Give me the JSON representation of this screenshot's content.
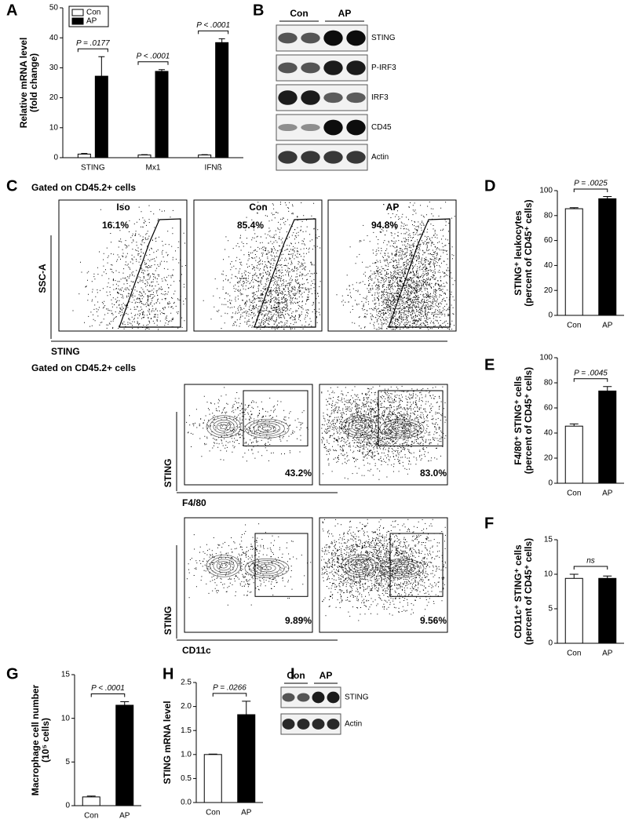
{
  "chart_data": [
    {
      "panel": "A",
      "type": "bar",
      "categories": [
        "STING",
        "Mx1",
        "IFNß"
      ],
      "series": [
        {
          "name": "Con",
          "color": "#ffffff",
          "values": [
            1.2,
            0.9,
            0.9
          ],
          "errors": [
            0.2,
            0.1,
            0.1
          ]
        },
        {
          "name": "AP",
          "color": "#000000",
          "values": [
            27.2,
            28.8,
            38.4
          ],
          "errors": [
            6.5,
            0.6,
            1.3
          ]
        }
      ],
      "ylabel": [
        "Relative mRNA level",
        "(fold change)"
      ],
      "ylim": [
        0,
        50
      ],
      "yticks": [
        0,
        10,
        20,
        30,
        40,
        50
      ],
      "annotations": [
        "P = .0177",
        "P < .0001",
        "P < .0001"
      ],
      "legend": "upper left"
    },
    {
      "panel": "D",
      "type": "bar",
      "categories": [
        "Con",
        "AP"
      ],
      "values": [
        85.5,
        93.5
      ],
      "errors": [
        0.8,
        1.8
      ],
      "colors": [
        "#ffffff",
        "#000000"
      ],
      "ylabel": [
        "STING⁺ leukocytes",
        "(percent of CD45⁺ cells)"
      ],
      "ylim": [
        0,
        100
      ],
      "yticks": [
        0,
        20,
        40,
        60,
        80,
        100
      ],
      "annotations": [
        "P = .0025"
      ]
    },
    {
      "panel": "E",
      "type": "bar",
      "categories": [
        "Con",
        "AP"
      ],
      "values": [
        45.5,
        73.5
      ],
      "errors": [
        1.8,
        3.5
      ],
      "colors": [
        "#ffffff",
        "#000000"
      ],
      "ylabel": [
        "F4/80⁺ STING⁺ cells",
        "(percent of CD45⁺ cells)"
      ],
      "ylim": [
        0,
        100
      ],
      "yticks": [
        0,
        20,
        40,
        60,
        80,
        100
      ],
      "annotations": [
        "P = .0045"
      ]
    },
    {
      "panel": "F",
      "type": "bar",
      "categories": [
        "Con",
        "AP"
      ],
      "values": [
        9.4,
        9.4
      ],
      "errors": [
        0.6,
        0.35
      ],
      "colors": [
        "#ffffff",
        "#000000"
      ],
      "ylabel": [
        "CD11c⁺ STING⁺ cells",
        "(percent of CD45⁺ cells)"
      ],
      "ylim": [
        0,
        15
      ],
      "yticks": [
        0,
        5,
        10,
        15
      ],
      "annotations": [
        "ns"
      ]
    },
    {
      "panel": "G",
      "type": "bar",
      "categories": [
        "Con",
        "AP"
      ],
      "values": [
        1.0,
        11.5
      ],
      "errors": [
        0.1,
        0.4
      ],
      "colors": [
        "#ffffff",
        "#000000"
      ],
      "ylabel": [
        "Macrophage cell number",
        "(10⁵ cells)"
      ],
      "ylim": [
        0,
        15
      ],
      "yticks": [
        0,
        5,
        10,
        15
      ],
      "annotations": [
        "P < .0001"
      ]
    },
    {
      "panel": "H",
      "type": "bar",
      "categories": [
        "Con",
        "AP"
      ],
      "values": [
        1.0,
        1.83
      ],
      "errors": [
        0.01,
        0.28
      ],
      "colors": [
        "#ffffff",
        "#000000"
      ],
      "ylabel": [
        "STING mRNA level"
      ],
      "ylim": [
        0,
        2.5
      ],
      "yticks": [
        {
          "value": 0,
          "label": "0.0"
        },
        0.5,
        {
          "value": 1,
          "label": "1.0"
        },
        1.5,
        {
          "value": 2,
          "label": "2.0"
        },
        2.5
      ],
      "annotations": [
        "P = .0266"
      ]
    }
  ],
  "blot_b": {
    "panel": "B",
    "groups": [
      "Con",
      "AP"
    ],
    "bands": [
      "STING",
      "P-IRF3",
      "IRF3",
      "CD45",
      "Actin"
    ]
  },
  "flow_c": {
    "panel": "C",
    "gate_titles": [
      "Gated on CD45.2+ cells",
      "Gated on CD45.2+ cells"
    ],
    "samples": [
      "Iso",
      "Con",
      "AP"
    ],
    "top_percents": [
      "16.1%",
      "85.4%",
      "94.8%"
    ],
    "top_y_label": "SSC-A",
    "top_x_label": "STING",
    "f480_percents": [
      "43.2%",
      "83.0%"
    ],
    "f480_y_label": "STING",
    "f480_x_label": "F4/80",
    "cd11c_percents": [
      "9.89%",
      "9.56%"
    ],
    "cd11c_y_label": "STING",
    "cd11c_x_label": "CD11c"
  },
  "blot_i": {
    "panel": "I",
    "groups": [
      "Con",
      "AP"
    ],
    "bands": [
      "STING",
      "Actin"
    ]
  }
}
